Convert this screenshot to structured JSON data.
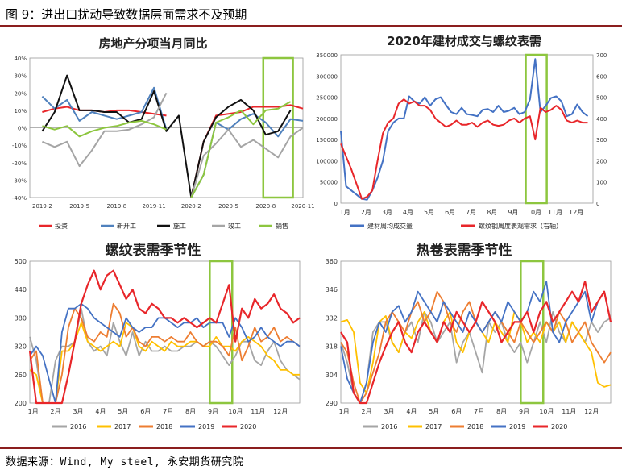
{
  "header": {
    "title": "图 9：进出口扰动导致数据层面需求不及预期"
  },
  "footer": {
    "source": "数据来源：Wind, My steel, 永安期货研究院"
  },
  "colors": {
    "rule": "#8b1e1e",
    "highlight": "#8dc63f"
  },
  "chart_data": [
    {
      "type": "line",
      "title": "房地产分项当月同比",
      "x": [
        "2019-1",
        "2019-2",
        "2019-3",
        "2019-4",
        "2019-5",
        "2019-6",
        "2019-7",
        "2019-8",
        "2019-9",
        "2019-10",
        "2019-11",
        "2019-12",
        "2020-1",
        "2020-2",
        "2020-3",
        "2020-4",
        "2020-5",
        "2020-6",
        "2020-7",
        "2020-8",
        "2020-9",
        "2020-10",
        "2020-11"
      ],
      "xticks": [
        "2019-2",
        "2019-5",
        "2019-8",
        "2019-11",
        "2020-2",
        "2020-5",
        "2020-8",
        "2020-11"
      ],
      "ylim": [
        -40,
        40
      ],
      "yticks": [
        "40%",
        "30%",
        "20%",
        "10%",
        "0%",
        "-10%",
        "-20%",
        "-30%",
        "-40%"
      ],
      "highlight": {
        "from": "2020-8",
        "to": "2020-10"
      },
      "series": [
        {
          "name": "投资",
          "color": "#e8262a",
          "values": [
            null,
            9,
            11,
            12,
            10,
            10,
            9,
            10,
            10,
            9,
            8,
            7,
            null,
            -40,
            -8,
            7,
            8,
            9,
            12,
            12,
            12,
            13,
            11
          ]
        },
        {
          "name": "新开工",
          "color": "#4f81bd",
          "values": [
            null,
            18,
            11,
            16,
            4,
            9,
            7,
            5,
            7,
            9,
            23,
            -1,
            null,
            -40,
            -27,
            3,
            -1,
            5,
            8,
            3,
            -5,
            5,
            4
          ]
        },
        {
          "name": "施工",
          "color": "#111111",
          "values": [
            null,
            -2,
            9,
            30,
            10,
            10,
            9,
            9,
            3,
            5,
            21,
            -2,
            7,
            -40,
            -8,
            6,
            12,
            16,
            10,
            -4,
            -2,
            10,
            null
          ]
        },
        {
          "name": "竣工",
          "color": "#a5a5a5",
          "values": [
            null,
            -8,
            -11,
            -8,
            -22,
            -13,
            -2,
            -2,
            -1,
            2,
            6,
            20,
            null,
            -40,
            -16,
            -9,
            -1,
            -11,
            -7,
            -12,
            -17,
            -5,
            0
          ]
        },
        {
          "name": "销售",
          "color": "#8dc63f",
          "values": [
            null,
            1,
            -1,
            1,
            -5,
            -2,
            0,
            1,
            3,
            4,
            2,
            -1,
            null,
            -40,
            -27,
            3,
            6,
            10,
            2,
            10,
            11,
            15,
            null
          ]
        }
      ]
    },
    {
      "type": "line",
      "title": "2020年建材成交与螺纹表需",
      "xticks": [
        "1月",
        "2月",
        "3月",
        "4月",
        "5月",
        "6月",
        "7月",
        "8月",
        "9月",
        "10月",
        "11月",
        "12月"
      ],
      "ylim": [
        0,
        350000
      ],
      "y2lim": [
        0,
        700
      ],
      "yticks": [
        "350000",
        "300000",
        "250000",
        "200000",
        "150000",
        "100000",
        "50000",
        "0"
      ],
      "y2ticks": [
        "700",
        "600",
        "500",
        "400",
        "300",
        "200",
        "100",
        "0"
      ],
      "highlight": {
        "from": 8.8,
        "to": 9.8
      },
      "series": [
        {
          "name": "建材周均成交量",
          "axis": "left",
          "color": "#4472c4",
          "x": [
            0,
            0.25,
            0.5,
            1.0,
            1.25,
            1.5,
            1.75,
            2.0,
            2.25,
            2.5,
            2.75,
            3.0,
            3.25,
            3.5,
            3.75,
            4.0,
            4.25,
            4.5,
            4.75,
            5.0,
            5.25,
            5.5,
            5.75,
            6.0,
            6.25,
            6.5,
            6.75,
            7.0,
            7.25,
            7.5,
            7.75,
            8.0,
            8.25,
            8.5,
            8.75,
            9.0,
            9.25,
            9.5,
            9.75,
            10.0,
            10.25,
            10.5,
            10.75,
            11.0,
            11.25,
            11.5,
            11.75
          ],
          "values": [
            170000,
            40000,
            30000,
            10000,
            8000,
            30000,
            60000,
            100000,
            170000,
            190000,
            200000,
            200000,
            252000,
            240000,
            235000,
            250000,
            230000,
            245000,
            250000,
            232000,
            215000,
            210000,
            225000,
            210000,
            208000,
            205000,
            220000,
            222000,
            215000,
            230000,
            215000,
            218000,
            225000,
            210000,
            215000,
            245000,
            340000,
            215000,
            230000,
            248000,
            252000,
            240000,
            205000,
            210000,
            233000,
            215000,
            205000
          ]
        },
        {
          "name": "螺纹钢周度表观需求（右轴）",
          "axis": "right",
          "color": "#e8262a",
          "x": [
            0,
            0.5,
            1.0,
            1.25,
            1.5,
            1.75,
            2.0,
            2.25,
            2.5,
            2.75,
            3.0,
            3.25,
            3.5,
            3.75,
            4.0,
            4.25,
            4.5,
            4.75,
            5.0,
            5.25,
            5.5,
            5.75,
            6.0,
            6.25,
            6.5,
            6.75,
            7.0,
            7.25,
            7.5,
            7.75,
            8.0,
            8.25,
            8.5,
            8.75,
            9.0,
            9.25,
            9.5,
            9.75,
            10.0,
            10.25,
            10.5,
            10.75,
            11.0,
            11.25,
            11.5,
            11.75
          ],
          "values": [
            280,
            160,
            20,
            30,
            60,
            200,
            330,
            380,
            400,
            470,
            490,
            470,
            480,
            460,
            460,
            440,
            400,
            380,
            360,
            370,
            390,
            370,
            370,
            380,
            360,
            380,
            390,
            370,
            365,
            370,
            390,
            400,
            380,
            400,
            410,
            300,
            450,
            430,
            440,
            460,
            440,
            390,
            380,
            390,
            380,
            380
          ]
        }
      ]
    },
    {
      "type": "line",
      "title": "螺纹表需季节性",
      "xticks": [
        "1月",
        "2月",
        "3月",
        "4月",
        "5月",
        "6月",
        "7月",
        "8月",
        "9月",
        "10月",
        "11月",
        "12月"
      ],
      "ylim": [
        200,
        500
      ],
      "yticks": [
        "500",
        "440",
        "380",
        "320",
        "260",
        "200"
      ],
      "highlight": {
        "from": 8,
        "to": 9
      },
      "series": [
        {
          "name": "2016",
          "color": "#a5a5a5",
          "values": [
            340,
            290,
            200,
            200,
            290,
            320,
            320,
            330,
            400,
            330,
            310,
            320,
            300,
            370,
            330,
            300,
            350,
            300,
            330,
            310,
            310,
            320,
            310,
            310,
            320,
            320,
            330,
            320,
            330,
            320,
            300,
            280,
            300,
            330,
            330,
            290,
            280,
            310,
            330,
            290,
            270,
            260,
            250
          ]
        },
        {
          "name": "2017",
          "color": "#ffc000",
          "values": [
            270,
            260,
            200,
            200,
            200,
            310,
            310,
            330,
            370,
            330,
            320,
            310,
            320,
            330,
            320,
            370,
            360,
            320,
            310,
            330,
            320,
            310,
            330,
            320,
            320,
            330,
            330,
            320,
            320,
            340,
            320,
            320,
            310,
            330,
            340,
            330,
            320,
            300,
            290,
            270,
            270,
            260,
            260
          ]
        },
        {
          "name": "2018",
          "color": "#ed7d31",
          "values": [
            290,
            310,
            200,
            200,
            200,
            260,
            360,
            400,
            380,
            340,
            330,
            350,
            340,
            410,
            390,
            340,
            360,
            330,
            320,
            340,
            340,
            330,
            340,
            330,
            330,
            350,
            330,
            320,
            330,
            330,
            320,
            300,
            360,
            290,
            320,
            360,
            330,
            340,
            360,
            330,
            340,
            330,
            320
          ]
        },
        {
          "name": "2019",
          "color": "#4472c4",
          "values": [
            300,
            320,
            300,
            250,
            200,
            350,
            400,
            400,
            410,
            400,
            380,
            370,
            360,
            350,
            340,
            380,
            360,
            350,
            360,
            360,
            380,
            380,
            370,
            360,
            370,
            370,
            380,
            360,
            370,
            370,
            370,
            340,
            380,
            360,
            330,
            340,
            360,
            340,
            330,
            320,
            330,
            330,
            320
          ]
        },
        {
          "name": "2020",
          "color": "#e8262a",
          "values": [
            310,
            200,
            200,
            200,
            200,
            200,
            260,
            330,
            410,
            450,
            480,
            440,
            470,
            480,
            450,
            420,
            440,
            400,
            390,
            410,
            400,
            380,
            380,
            370,
            380,
            370,
            360,
            370,
            380,
            370,
            410,
            450,
            330,
            400,
            380,
            420,
            400,
            410,
            430,
            400,
            390,
            370,
            380
          ]
        }
      ]
    },
    {
      "type": "line",
      "title": "热卷表需季节性",
      "xticks": [
        "1月",
        "2月",
        "3月",
        "4月",
        "5月",
        "6月",
        "7月",
        "8月",
        "9月",
        "10月",
        "11月",
        "12月"
      ],
      "ylim": [
        290,
        360
      ],
      "yticks": [
        "360",
        "346",
        "332",
        "318",
        "304",
        "290"
      ],
      "highlight": {
        "from": 8,
        "to": 9
      },
      "series": [
        {
          "name": "2016",
          "color": "#a5a5a5",
          "values": [
            320,
            310,
            295,
            290,
            300,
            325,
            330,
            330,
            320,
            315,
            325,
            330,
            320,
            335,
            330,
            320,
            325,
            330,
            310,
            320,
            325,
            315,
            305,
            330,
            325,
            330,
            320,
            315,
            320,
            310,
            320,
            330,
            320,
            335,
            325,
            320,
            330,
            325,
            320,
            330,
            325,
            330,
            332
          ]
        },
        {
          "name": "2017",
          "color": "#ffc000",
          "values": [
            330,
            331,
            325,
            300,
            295,
            310,
            330,
            333,
            320,
            315,
            325,
            322,
            330,
            335,
            325,
            320,
            330,
            335,
            320,
            315,
            325,
            330,
            325,
            320,
            330,
            325,
            320,
            335,
            330,
            320,
            325,
            320,
            330,
            325,
            330,
            320,
            330,
            325,
            320,
            315,
            300,
            298,
            299
          ]
        },
        {
          "name": "2018",
          "color": "#ed7d31",
          "values": [
            320,
            315,
            300,
            290,
            295,
            305,
            315,
            330,
            335,
            330,
            325,
            335,
            340,
            330,
            335,
            345,
            340,
            330,
            325,
            335,
            340,
            330,
            325,
            330,
            335,
            330,
            325,
            320,
            330,
            325,
            320,
            325,
            330,
            325,
            335,
            330,
            320,
            325,
            330,
            320,
            315,
            310,
            315
          ]
        },
        {
          "name": "2019",
          "color": "#4472c4",
          "values": [
            318,
            302,
            295,
            290,
            300,
            320,
            330,
            325,
            335,
            338,
            330,
            335,
            345,
            340,
            335,
            330,
            340,
            335,
            330,
            325,
            335,
            330,
            325,
            330,
            335,
            330,
            340,
            335,
            330,
            335,
            345,
            340,
            350,
            325,
            320,
            330,
            335,
            340,
            345,
            330,
            340,
            345,
            330
          ]
        },
        {
          "name": "2020",
          "color": "#e8262a",
          "values": [
            325,
            320,
            295,
            290,
            290,
            300,
            310,
            318,
            325,
            330,
            320,
            315,
            325,
            330,
            325,
            320,
            330,
            325,
            335,
            330,
            325,
            330,
            340,
            335,
            330,
            320,
            325,
            330,
            330,
            335,
            325,
            335,
            340,
            330,
            335,
            340,
            345,
            340,
            350,
            335,
            340,
            345,
            330
          ]
        }
      ]
    }
  ]
}
